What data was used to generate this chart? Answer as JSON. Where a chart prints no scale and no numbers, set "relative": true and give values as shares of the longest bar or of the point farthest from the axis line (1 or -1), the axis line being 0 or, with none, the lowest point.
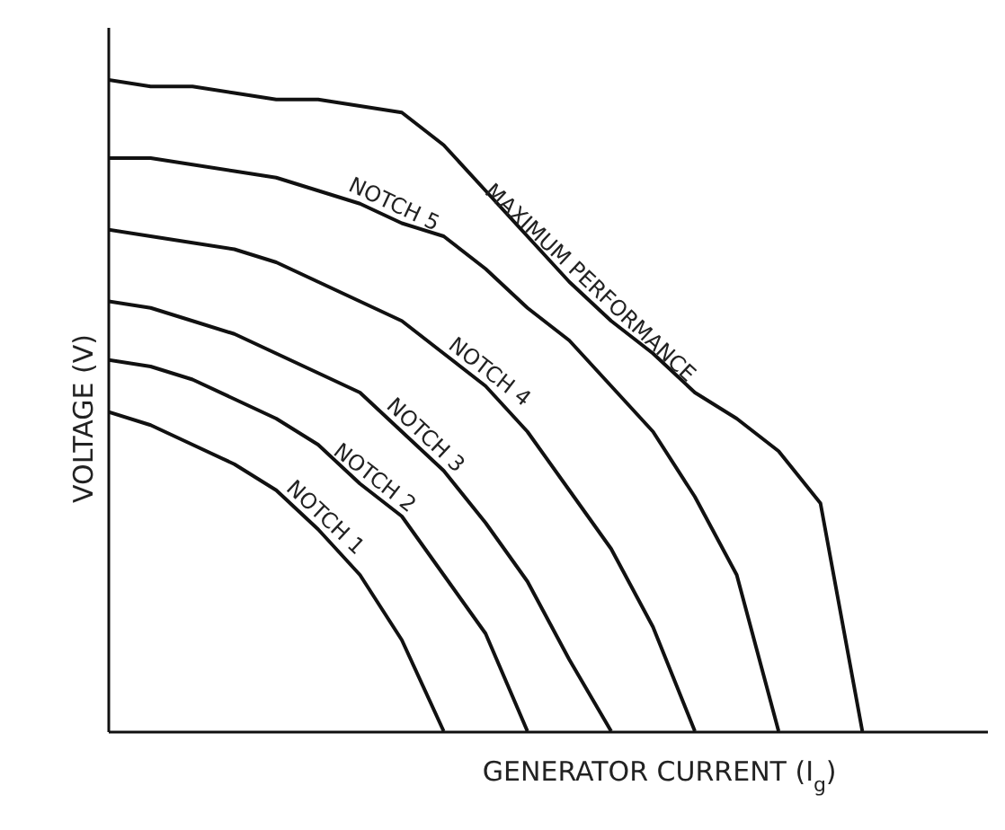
{
  "chart_data": {
    "type": "line",
    "relative": true,
    "xlabel": "GENERATOR CURRENT (I$_{g}$)",
    "ylabel": "VOLTAGE (V)",
    "marker": "none",
    "line_style": "solid",
    "categories": [
      null,
      null,
      null,
      null,
      null,
      null,
      null,
      null,
      null,
      null,
      null,
      null,
      null,
      null,
      null,
      null,
      null,
      null,
      null,
      null,
      null
    ],
    "series": [
      {
        "name": "MAXIMUM PERFORMANCE",
        "color": "#111111",
        "values": [
          1.0,
          0.99,
          0.99,
          0.98,
          0.97,
          0.97,
          0.96,
          0.95,
          0.9,
          0.83,
          0.76,
          0.69,
          0.63,
          0.58,
          0.52,
          0.48,
          0.43,
          0.35,
          0,
          null,
          null
        ]
      },
      {
        "name": "NOTCH 5",
        "color": "#111111",
        "values": [
          0.88,
          0.88,
          0.87,
          0.86,
          0.85,
          0.83,
          0.81,
          0.78,
          0.76,
          0.71,
          0.65,
          0.6,
          0.53,
          0.46,
          0.36,
          0.24,
          0,
          null,
          null,
          null,
          null
        ]
      },
      {
        "name": "NOTCH 4",
        "color": "#111111",
        "values": [
          0.77,
          0.76,
          0.75,
          0.74,
          0.72,
          0.69,
          0.66,
          0.63,
          0.58,
          0.53,
          0.46,
          0.37,
          0.28,
          0.16,
          0,
          null,
          null,
          null,
          null,
          null,
          null
        ]
      },
      {
        "name": "NOTCH 3",
        "color": "#111111",
        "values": [
          0.66,
          0.65,
          0.63,
          0.61,
          0.58,
          0.55,
          0.52,
          0.46,
          0.4,
          0.32,
          0.23,
          0.11,
          0,
          null,
          null,
          null,
          null,
          null,
          null,
          null,
          null
        ]
      },
      {
        "name": "NOTCH 2",
        "color": "#111111",
        "values": [
          0.57,
          0.56,
          0.54,
          0.51,
          0.48,
          0.44,
          0.38,
          0.33,
          0.24,
          0.15,
          0,
          null,
          null,
          null,
          null,
          null,
          null,
          null,
          null,
          null,
          null
        ]
      },
      {
        "name": "NOTCH 1",
        "color": "#111111",
        "values": [
          0.49,
          0.47,
          0.44,
          0.41,
          0.37,
          0.31,
          0.24,
          0.14,
          0,
          null,
          null,
          null,
          null,
          null,
          null,
          null,
          null,
          null,
          null,
          null,
          null
        ]
      }
    ]
  }
}
